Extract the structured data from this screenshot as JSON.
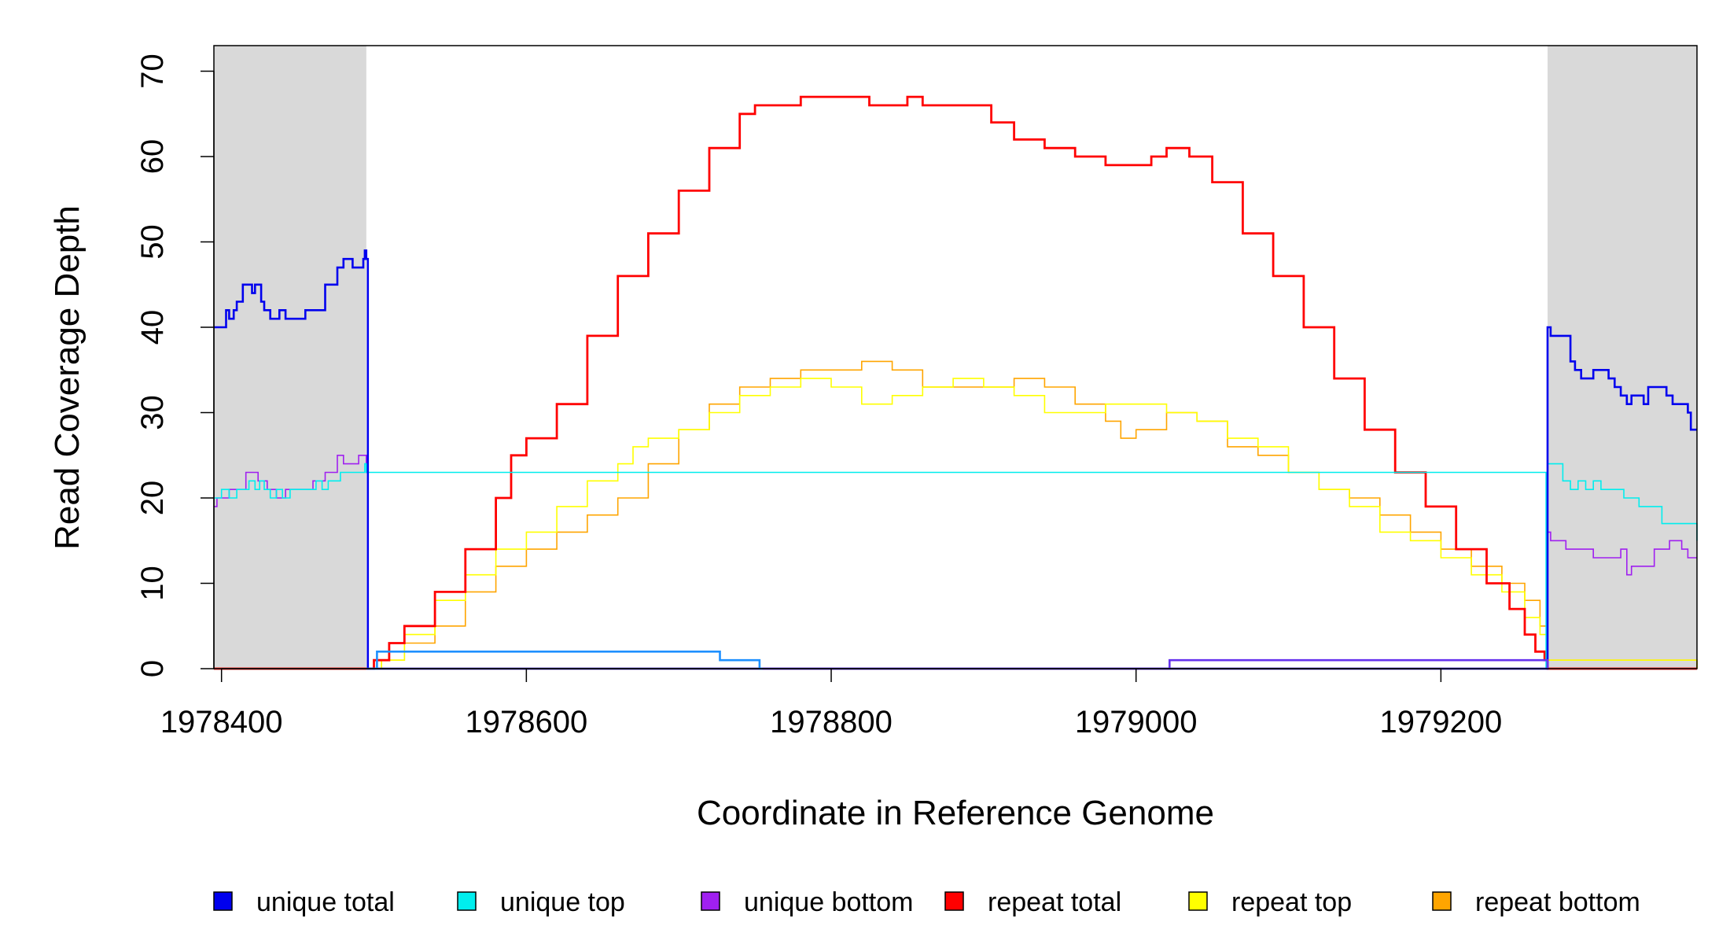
{
  "chart_data": {
    "type": "line",
    "xlabel": "Coordinate in Reference Genome",
    "ylabel": "Read Coverage Depth",
    "xlim": [
      1978395,
      1979368
    ],
    "ylim": [
      0,
      73
    ],
    "x_ticks": [
      1978400,
      1978600,
      1978800,
      1979000,
      1979200
    ],
    "x_tick_labels": [
      "1978400",
      "1978600",
      "1978800",
      "1979000",
      "1979200"
    ],
    "y_ticks": [
      0,
      10,
      20,
      30,
      40,
      50,
      60,
      70
    ],
    "y_tick_labels": [
      "0",
      "10",
      "20",
      "30",
      "40",
      "50",
      "60",
      "70"
    ],
    "shaded_regions": [
      [
        1978395,
        1978495
      ],
      [
        1979270,
        1979368
      ]
    ],
    "shade_color": "#d9d9d9",
    "legend_placement": "bottom",
    "series": [
      {
        "name": "unique total",
        "color": "#0000ee",
        "width": 2.6,
        "x": [
          1978395,
          1978403,
          1978405,
          1978408,
          1978410,
          1978414,
          1978418,
          1978420,
          1978422,
          1978426,
          1978428,
          1978432,
          1978438,
          1978442,
          1978446,
          1978450,
          1978455,
          1978460,
          1978464,
          1978468,
          1978470,
          1978476,
          1978480,
          1978484,
          1978486,
          1978490,
          1978493,
          1978494,
          1978495,
          1978496,
          1979269,
          1979270,
          1979272,
          1979275,
          1979280,
          1979285,
          1979288,
          1979292,
          1979296,
          1979300,
          1979305,
          1979310,
          1979314,
          1979318,
          1979322,
          1979325,
          1979330,
          1979333,
          1979336,
          1979340,
          1979344,
          1979348,
          1979352,
          1979360,
          1979362,
          1979364,
          1979368
        ],
        "y": [
          40,
          42,
          41,
          42,
          43,
          45,
          45,
          44,
          45,
          43,
          42,
          41,
          42,
          41,
          41,
          41,
          42,
          42,
          42,
          45,
          45,
          47,
          48,
          48,
          47,
          47,
          48,
          49,
          48,
          0,
          0,
          40,
          39,
          39,
          39,
          36,
          35,
          34,
          34,
          35,
          35,
          34,
          33,
          32,
          31,
          32,
          32,
          31,
          33,
          33,
          33,
          32,
          31,
          31,
          30,
          28,
          28
        ]
      },
      {
        "name": "unique top",
        "color": "#00eeee",
        "width": 1.6,
        "x": [
          1978395,
          1978400,
          1978405,
          1978410,
          1978414,
          1978418,
          1978422,
          1978425,
          1978428,
          1978432,
          1978436,
          1978440,
          1978445,
          1978450,
          1978458,
          1978462,
          1978466,
          1978470,
          1978474,
          1978478,
          1978482,
          1978486,
          1978490,
          1978494,
          1978495,
          1979269,
          1979270,
          1979273,
          1979280,
          1979285,
          1979290,
          1979295,
          1979300,
          1979305,
          1979310,
          1979320,
          1979330,
          1979345,
          1979360,
          1979368
        ],
        "y": [
          20,
          21,
          20,
          21,
          21,
          22,
          21,
          22,
          21,
          20,
          21,
          20,
          21,
          21,
          21,
          22,
          21,
          22,
          22,
          23,
          23,
          23,
          23,
          24,
          23,
          0,
          24,
          24,
          22,
          21,
          22,
          21,
          22,
          21,
          21,
          20,
          19,
          17,
          17,
          15
        ]
      },
      {
        "name": "unique bottom",
        "color": "#a020f0",
        "width": 1.6,
        "x": [
          1978395,
          1978397,
          1978401,
          1978405,
          1978410,
          1978416,
          1978420,
          1978424,
          1978430,
          1978436,
          1978442,
          1978450,
          1978460,
          1978464,
          1978468,
          1978472,
          1978476,
          1978480,
          1978486,
          1978490,
          1978494,
          1978495,
          1978496,
          1979269,
          1979270,
          1979272,
          1979275,
          1979282,
          1979290,
          1979300,
          1979310,
          1979318,
          1979322,
          1979325,
          1979330,
          1979340,
          1979350,
          1979358,
          1979362,
          1979368
        ],
        "y": [
          19,
          20,
          20,
          21,
          21,
          23,
          23,
          22,
          21,
          20,
          21,
          21,
          22,
          22,
          23,
          23,
          25,
          24,
          24,
          25,
          25,
          23,
          0,
          0,
          16,
          15,
          15,
          14,
          14,
          13,
          13,
          14,
          11,
          12,
          12,
          14,
          15,
          14,
          13,
          13
        ]
      },
      {
        "name": "repeat total",
        "color": "#ff0000",
        "width": 2.8,
        "x": [
          1978395,
          1978495,
          1978500,
          1978510,
          1978520,
          1978540,
          1978560,
          1978580,
          1978590,
          1978600,
          1978620,
          1978640,
          1978660,
          1978680,
          1978700,
          1978720,
          1978740,
          1978750,
          1978760,
          1978780,
          1978790,
          1978800,
          1978815,
          1978825,
          1978840,
          1978850,
          1978860,
          1978875,
          1978890,
          1978905,
          1978920,
          1978940,
          1978960,
          1978980,
          1978990,
          1979000,
          1979010,
          1979020,
          1979035,
          1979050,
          1979070,
          1979090,
          1979110,
          1979130,
          1979150,
          1979170,
          1979190,
          1979210,
          1979230,
          1979245,
          1979255,
          1979262,
          1979268,
          1979270,
          1979368
        ],
        "y": [
          0,
          0,
          1,
          3,
          5,
          9,
          14,
          20,
          25,
          27,
          31,
          39,
          46,
          51,
          56,
          61,
          65,
          66,
          66,
          67,
          67,
          67,
          67,
          66,
          66,
          67,
          66,
          66,
          66,
          64,
          62,
          61,
          60,
          59,
          59,
          59,
          60,
          61,
          60,
          57,
          51,
          46,
          40,
          34,
          28,
          23,
          19,
          14,
          10,
          7,
          4,
          2,
          1,
          0,
          0
        ]
      },
      {
        "name": "repeat top",
        "color": "#ffff00",
        "width": 1.6,
        "x": [
          1978395,
          1978495,
          1978505,
          1978520,
          1978540,
          1978560,
          1978580,
          1978600,
          1978620,
          1978640,
          1978660,
          1978670,
          1978680,
          1978700,
          1978720,
          1978740,
          1978760,
          1978780,
          1978800,
          1978820,
          1978840,
          1978860,
          1978880,
          1978900,
          1978920,
          1978940,
          1978960,
          1978980,
          1979000,
          1979020,
          1979040,
          1979060,
          1979080,
          1979100,
          1979120,
          1979140,
          1979160,
          1979180,
          1979200,
          1979220,
          1979240,
          1979255,
          1979265,
          1979270,
          1979368
        ],
        "y": [
          0,
          0,
          1,
          4,
          8,
          11,
          14,
          16,
          19,
          22,
          24,
          26,
          27,
          28,
          30,
          32,
          33,
          34,
          33,
          31,
          32,
          33,
          34,
          33,
          32,
          30,
          30,
          31,
          31,
          30,
          29,
          27,
          26,
          23,
          21,
          19,
          16,
          15,
          13,
          11,
          9,
          6,
          4,
          1,
          0
        ]
      },
      {
        "name": "repeat bottom",
        "color": "#ffa500",
        "width": 1.6,
        "x": [
          1978395,
          1978495,
          1978505,
          1978520,
          1978540,
          1978560,
          1978580,
          1978600,
          1978620,
          1978640,
          1978660,
          1978680,
          1978700,
          1978720,
          1978740,
          1978760,
          1978780,
          1978800,
          1978820,
          1978840,
          1978860,
          1978880,
          1978900,
          1978920,
          1978940,
          1978960,
          1978980,
          1978990,
          1979000,
          1979020,
          1979040,
          1979060,
          1979080,
          1979100,
          1979120,
          1979140,
          1979160,
          1979180,
          1979200,
          1979220,
          1979240,
          1979255,
          1979265,
          1979270,
          1979368
        ],
        "y": [
          0,
          0,
          1,
          3,
          5,
          9,
          12,
          14,
          16,
          18,
          20,
          24,
          28,
          31,
          33,
          34,
          35,
          35,
          36,
          35,
          33,
          33,
          33,
          34,
          33,
          31,
          29,
          27,
          28,
          30,
          29,
          26,
          25,
          23,
          21,
          20,
          18,
          16,
          14,
          12,
          10,
          8,
          5,
          1,
          0
        ]
      }
    ],
    "step_series": [
      {
        "color": "#1e90ff",
        "width": 2.6,
        "x": [
          1978495,
          1978500,
          1978502,
          1978503,
          1978727,
          1978753,
          1978755
        ],
        "y": [
          0,
          0,
          2,
          2,
          1,
          0,
          0
        ]
      },
      {
        "color": "#6633ee",
        "width": 2.6,
        "x": [
          1978755,
          1979022,
          1979268,
          1979270
        ],
        "y": [
          0,
          1,
          1,
          0
        ]
      }
    ]
  }
}
